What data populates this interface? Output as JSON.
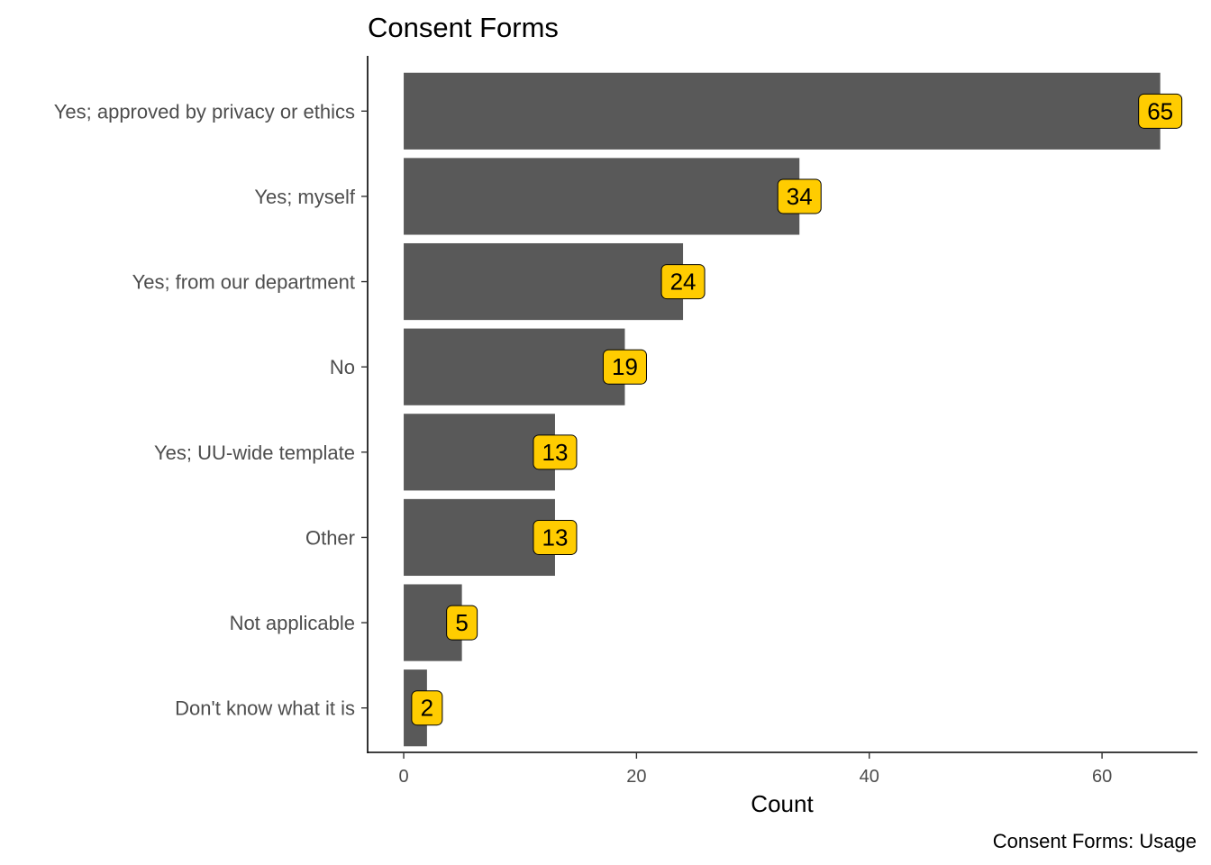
{
  "colors": {
    "bar": "#595959",
    "label_fill": "#FFCC00",
    "axis": "#000000",
    "tick_text": "#4d4d4d"
  },
  "chart_data": {
    "type": "bar",
    "orientation": "horizontal",
    "title": "Consent Forms",
    "xlabel": "Count",
    "ylabel": "",
    "caption": "Consent Forms: Usage",
    "categories": [
      "Yes; approved by privacy or ethics",
      "Yes; myself",
      "Yes; from our department",
      "No",
      "Yes; UU-wide template",
      "Other",
      "Not applicable",
      "Don't know what it is"
    ],
    "values": [
      65,
      34,
      24,
      19,
      13,
      13,
      5,
      2
    ],
    "xlim": [
      -3.1,
      68.2
    ],
    "xticks": [
      0,
      20,
      40,
      60
    ],
    "grid": false,
    "legend": "none"
  }
}
